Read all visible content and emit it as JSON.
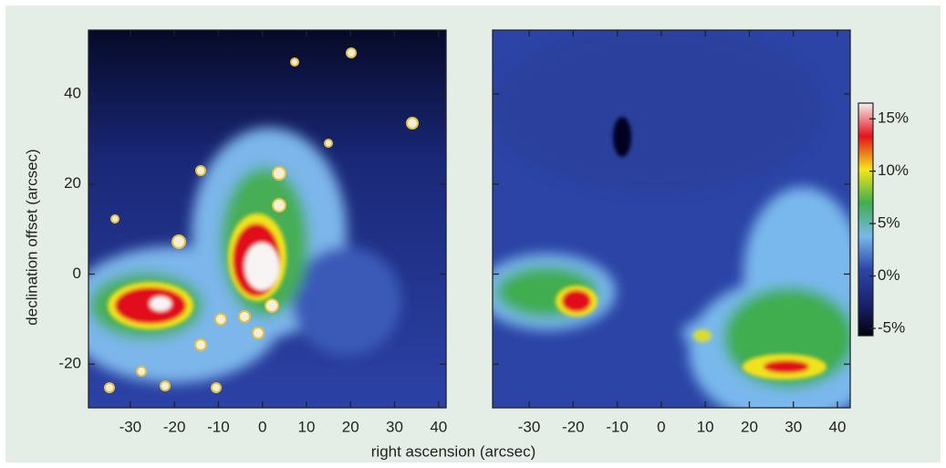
{
  "chart_data": [
    {
      "type": "image",
      "ylabel": "declination offset (arcsec)",
      "xlabel": "right ascension (arcsec)",
      "xlim": [
        -39.5,
        41.7
      ],
      "xticks": [
        -30,
        -20,
        -10,
        0,
        10,
        20,
        30,
        40
      ],
      "ylim": [
        -29.7,
        54.2
      ],
      "yticks": [
        -20,
        0,
        20,
        40
      ],
      "show_ytick_labels": true
    },
    {
      "type": "image",
      "xlim": [
        -38.3,
        42.9
      ],
      "xticks": [
        -30,
        -20,
        -10,
        0,
        10,
        20,
        30,
        40
      ],
      "ylim": [
        -29.7,
        54.2
      ],
      "yticks": [
        -20,
        0,
        20,
        40
      ],
      "show_ytick_labels": false
    },
    {
      "type": "colorbar",
      "ylim": [
        -5.7,
        16.5
      ],
      "yticks": [
        {
          "value": -5,
          "label": "-5%"
        },
        {
          "value": 0,
          "label": "0%"
        },
        {
          "value": 5,
          "label": "5%"
        },
        {
          "value": 10,
          "label": "10%"
        },
        {
          "value": 15,
          "label": "15%"
        }
      ],
      "colormap": [
        "#02020f",
        "#1a2470",
        "#2c46a8",
        "#79b8ec",
        "#3fae4f",
        "#f3e61a",
        "#e3121c",
        "#f5f0f0"
      ]
    }
  ]
}
